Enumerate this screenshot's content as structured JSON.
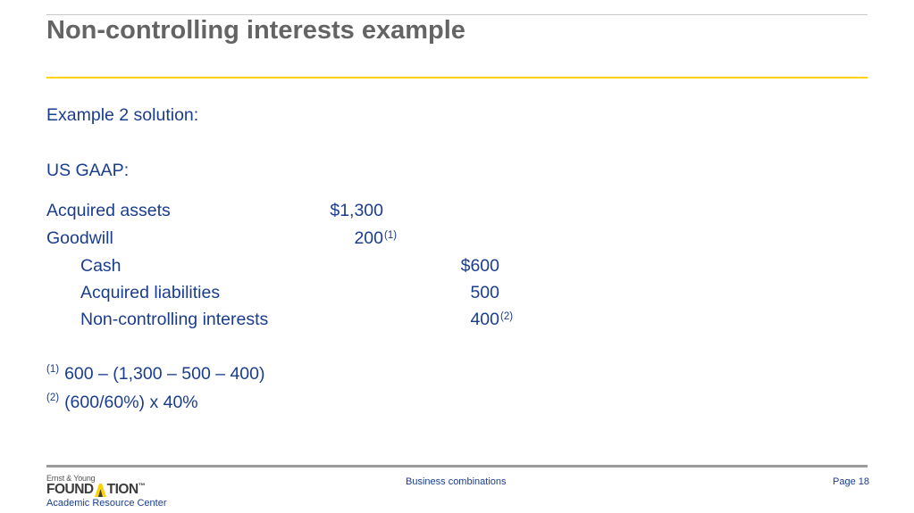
{
  "slide": {
    "title": "Non-controlling interests example",
    "intro": "Example 2 solution:",
    "gaap_label": "US GAAP:",
    "entries": {
      "acquired_assets": {
        "label": "Acquired assets",
        "amount": "$1,300"
      },
      "goodwill": {
        "label": "Goodwill",
        "amount": "200",
        "note": "(1)"
      },
      "cash": {
        "label": "Cash",
        "amount": "$600"
      },
      "acquired_liabilities": {
        "label": "Acquired liabilities",
        "amount": "500"
      },
      "nci": {
        "label": "Non-controlling interests",
        "amount": "400",
        "note": "(2)"
      }
    },
    "footnotes": [
      {
        "marker": "(1)",
        "text": "600 – (1,300 – 500 – 400)"
      },
      {
        "marker": "(2)",
        "text": "(600/60%) x 40%"
      }
    ]
  },
  "footer": {
    "logo": {
      "small": "Ernst & Young",
      "main_left": "FOUND",
      "main_right": "TION",
      "tm": "™",
      "sub": "Academic Resource Center"
    },
    "center": "Business combinations",
    "page": "Page 18"
  },
  "colors": {
    "accent_rule": "#ffd200",
    "body_text": "#1a3d8f",
    "title": "#646464"
  }
}
